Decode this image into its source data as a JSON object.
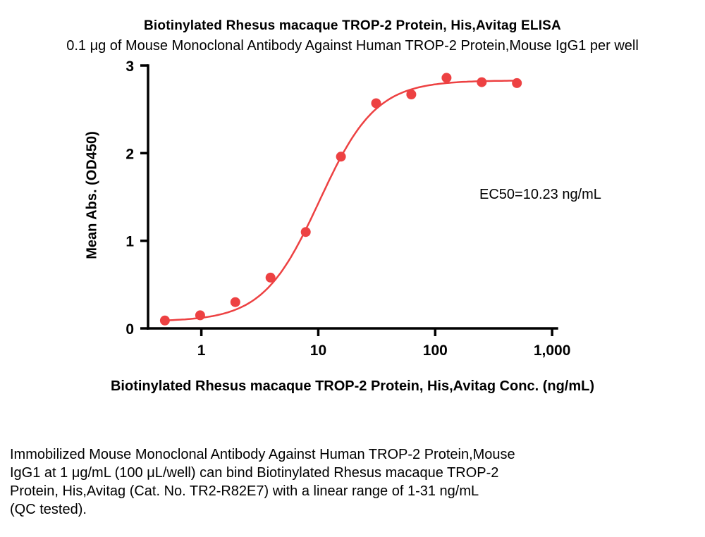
{
  "chart_data": {
    "type": "scatter",
    "title": "Biotinylated Rhesus macaque TROP-2 Protein, His,Avitag ELISA",
    "subtitle": "0.1 μg of Mouse Monoclonal Antibody Against Human TROP-2 Protein,Mouse IgG1 per well",
    "xlabel": "Biotinylated Rhesus macaque TROP-2 Protein, His,Avitag Conc. (ng/mL)",
    "ylabel": "Mean Abs. (OD450)",
    "annotation": "EC50=10.23 ng/mL",
    "x_scale": "log",
    "xlim": [
      0.35,
      1100
    ],
    "ylim": [
      0,
      3
    ],
    "grid": false,
    "legend": "none",
    "x_ticks": [
      {
        "value": 1,
        "label": "1"
      },
      {
        "value": 10,
        "label": "10"
      },
      {
        "value": 100,
        "label": "100"
      },
      {
        "value": 1000,
        "label": "1,000"
      }
    ],
    "y_ticks": [
      0,
      1,
      2,
      3
    ],
    "points": [
      [
        0.488,
        0.09
      ],
      [
        0.977,
        0.15
      ],
      [
        1.953,
        0.3
      ],
      [
        3.906,
        0.58
      ],
      [
        7.813,
        1.1
      ],
      [
        15.625,
        1.96
      ],
      [
        31.25,
        2.57
      ],
      [
        62.5,
        2.67
      ],
      [
        125,
        2.86
      ],
      [
        250,
        2.81
      ],
      [
        500,
        2.8
      ]
    ],
    "fit": {
      "model": "4PL",
      "bottom": 0.08,
      "top": 2.83,
      "ec50": 10.23,
      "hill": 1.8,
      "x_start": 0.488,
      "x_end": 500
    },
    "color": "#ed4142",
    "axis_color": "#000000"
  },
  "description": {
    "text": "Immobilized Mouse Monoclonal Antibody Against Human TROP-2 Protein,Mouse\nIgG1 at 1 μg/mL (100 μL/well) can bind Biotinylated Rhesus macaque TROP-2\nProtein, His,Avitag (Cat. No. TR2-R82E7) with a linear range of 1-31 ng/mL\n(QC tested)."
  }
}
